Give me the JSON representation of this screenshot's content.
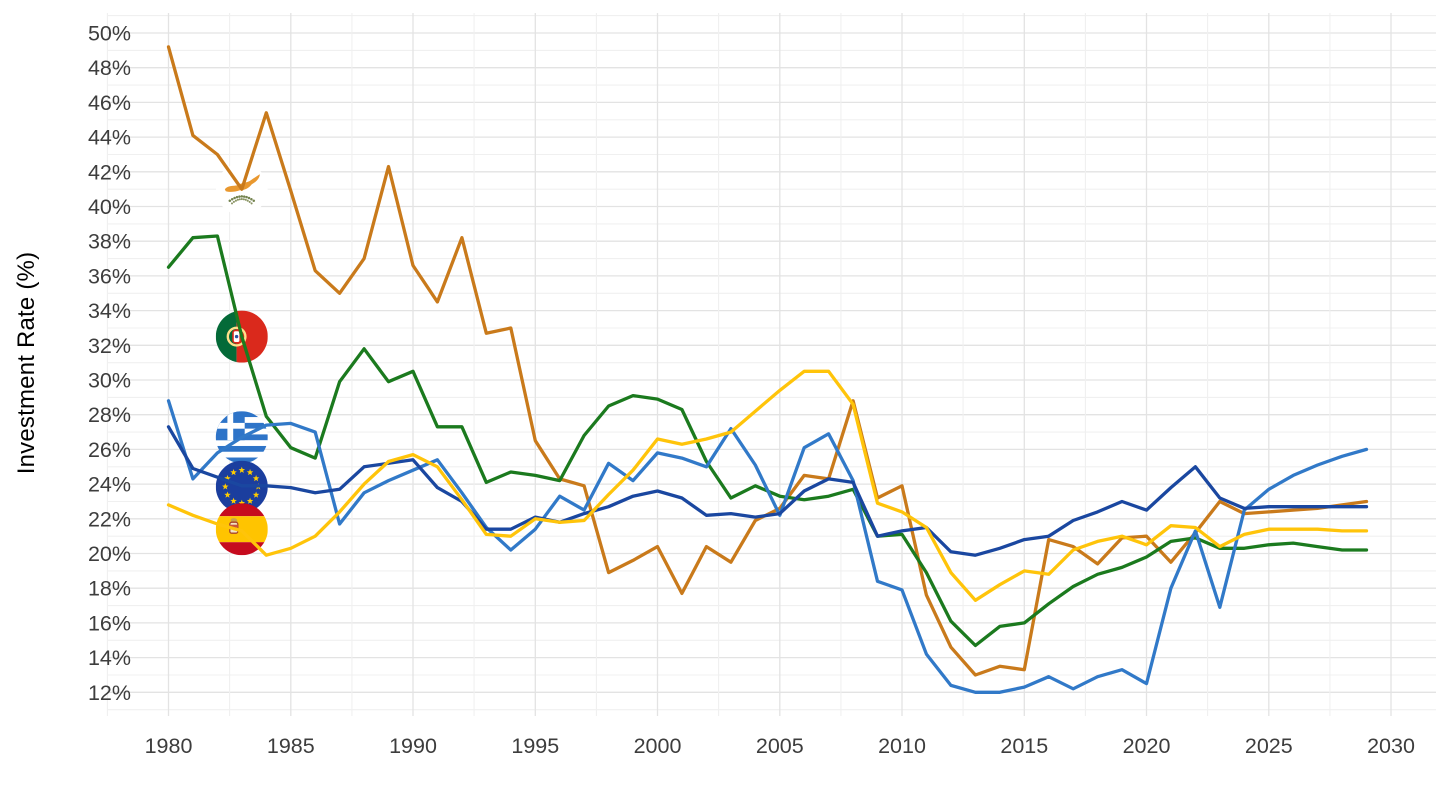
{
  "page": {
    "background": "#FFFFFF"
  },
  "chart_data": {
    "type": "line",
    "title": "",
    "xlabel": "",
    "ylabel": "Investment Rate (%)",
    "grid": true,
    "legend": "flag icons placed on lines at year 1983",
    "x_range": [
      1977.5,
      2030.5
    ],
    "y_range": [
      11,
      51
    ],
    "x_ticks": {
      "values": [
        1980,
        1985,
        1990,
        1995,
        2000,
        2005,
        2010,
        2015,
        2020,
        2025,
        2030
      ],
      "labels": [
        "1980",
        "1985",
        "1990",
        "1995",
        "2000",
        "2005",
        "2010",
        "2015",
        "2020",
        "2025",
        "2030"
      ]
    },
    "y_ticks": {
      "values": [
        12,
        14,
        16,
        18,
        20,
        22,
        24,
        26,
        28,
        30,
        32,
        34,
        36,
        38,
        40,
        42,
        44,
        46,
        48,
        50
      ],
      "labels": [
        "12%",
        "14%",
        "16%",
        "18%",
        "20%",
        "22%",
        "24%",
        "26%",
        "28%",
        "30%",
        "32%",
        "34%",
        "36%",
        "38%",
        "40%",
        "42%",
        "44%",
        "46%",
        "48%",
        "50%"
      ]
    },
    "years": [
      1980,
      1981,
      1982,
      1983,
      1984,
      1985,
      1986,
      1987,
      1988,
      1989,
      1990,
      1991,
      1992,
      1993,
      1994,
      1995,
      1996,
      1997,
      1998,
      1999,
      2000,
      2001,
      2002,
      2003,
      2004,
      2005,
      2006,
      2007,
      2008,
      2009,
      2010,
      2011,
      2012,
      2013,
      2014,
      2015,
      2016,
      2017,
      2018,
      2019,
      2020,
      2021,
      2022,
      2023,
      2024,
      2025,
      2026,
      2027,
      2028,
      2029
    ],
    "series": [
      {
        "name": "Cyprus",
        "color": "#C97A1B",
        "values": [
          49.2,
          44.1,
          43.0,
          41.0,
          45.4,
          40.9,
          36.3,
          35.0,
          37.0,
          42.3,
          36.6,
          34.5,
          38.2,
          32.7,
          33.0,
          26.5,
          24.3,
          23.9,
          18.9,
          19.6,
          20.4,
          17.7,
          20.4,
          19.5,
          21.9,
          22.6,
          24.5,
          24.3,
          28.8,
          23.2,
          23.9,
          17.6,
          14.6,
          13.0,
          13.5,
          13.3,
          20.8,
          20.4,
          19.4,
          20.9,
          21.0,
          19.5,
          21.2,
          23.0,
          22.3,
          22.4,
          22.5,
          22.6,
          22.8,
          23.0
        ]
      },
      {
        "name": "Portugal",
        "color": "#1B7A1E",
        "values": [
          36.5,
          38.2,
          38.3,
          32.5,
          27.9,
          26.1,
          25.5,
          29.9,
          31.8,
          29.9,
          30.5,
          27.3,
          27.3,
          24.1,
          24.7,
          24.5,
          24.2,
          26.8,
          28.5,
          29.1,
          28.9,
          28.3,
          25.3,
          23.2,
          23.9,
          23.3,
          23.1,
          23.3,
          23.7,
          21.0,
          21.1,
          18.9,
          16.1,
          14.7,
          15.8,
          16.0,
          17.1,
          18.1,
          18.8,
          19.2,
          19.8,
          20.7,
          20.9,
          20.3,
          20.3,
          20.5,
          20.6,
          20.4,
          20.2,
          20.2
        ]
      },
      {
        "name": "Greece",
        "color": "#3179C8",
        "values": [
          28.8,
          24.3,
          25.8,
          26.7,
          27.4,
          27.5,
          27.0,
          21.7,
          23.5,
          24.2,
          24.8,
          25.4,
          23.5,
          21.5,
          20.2,
          21.4,
          23.3,
          22.5,
          25.2,
          24.2,
          25.8,
          25.5,
          25.0,
          27.2,
          25.1,
          22.2,
          26.1,
          26.9,
          24.2,
          18.4,
          17.9,
          14.2,
          12.4,
          12.0,
          12.0,
          12.3,
          12.9,
          12.2,
          12.9,
          13.3,
          12.5,
          18.0,
          21.3,
          16.9,
          22.5,
          23.7,
          24.5,
          25.1,
          25.6,
          26.0
        ]
      },
      {
        "name": "European Union",
        "color": "#1A47A0",
        "values": [
          27.3,
          24.9,
          24.4,
          23.9,
          23.9,
          23.8,
          23.5,
          23.7,
          25.0,
          25.2,
          25.4,
          23.8,
          23.0,
          21.4,
          21.4,
          22.1,
          21.8,
          22.3,
          22.7,
          23.3,
          23.6,
          23.2,
          22.2,
          22.3,
          22.1,
          22.3,
          23.6,
          24.3,
          24.1,
          21.0,
          21.3,
          21.5,
          20.1,
          19.9,
          20.3,
          20.8,
          21.0,
          21.9,
          22.4,
          23.0,
          22.5,
          23.8,
          25.0,
          23.2,
          22.6,
          22.7,
          22.7,
          22.7,
          22.7,
          22.7
        ]
      },
      {
        "name": "Spain",
        "color": "#FFC40A",
        "values": [
          22.8,
          22.2,
          21.7,
          21.3,
          19.9,
          20.3,
          21.0,
          22.4,
          24.0,
          25.3,
          25.7,
          25.0,
          23.1,
          21.1,
          21.0,
          22.0,
          21.8,
          21.9,
          23.4,
          24.8,
          26.6,
          26.3,
          26.6,
          27.0,
          28.2,
          29.4,
          30.5,
          30.5,
          28.6,
          22.9,
          22.4,
          21.5,
          18.9,
          17.3,
          18.2,
          19.0,
          18.8,
          20.2,
          20.7,
          21.0,
          20.5,
          21.6,
          21.5,
          20.4,
          21.1,
          21.4,
          21.4,
          21.4,
          21.3,
          21.3
        ]
      }
    ],
    "flag_markers": [
      {
        "country": "Cyprus",
        "icon": "cyprus-flag-icon",
        "year": 1983,
        "value": 41.0
      },
      {
        "country": "Portugal",
        "icon": "portugal-flag-icon",
        "year": 1983,
        "value": 32.5
      },
      {
        "country": "Greece",
        "icon": "greece-flag-icon",
        "year": 1983,
        "value": 26.7
      },
      {
        "country": "European Union",
        "icon": "eu-flag-icon",
        "year": 1983,
        "value": 23.85
      },
      {
        "country": "Spain",
        "icon": "spain-flag-icon",
        "year": 1983,
        "value": 21.4
      }
    ]
  }
}
